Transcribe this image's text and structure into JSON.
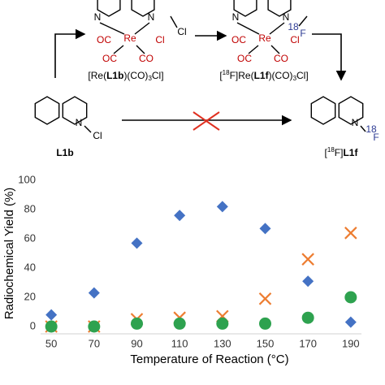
{
  "scheme": {
    "complex_1": {
      "atoms": [
        "N",
        "N",
        "Cl",
        "OC",
        "Re",
        "Cl",
        "OC",
        "CO"
      ],
      "label": [
        "[Re(",
        "L1b",
        ")(CO)",
        "3",
        "Cl]"
      ]
    },
    "complex_2": {
      "atoms": [
        "N",
        "N",
        "18",
        "F",
        "OC",
        "Re",
        "Cl",
        "OC",
        "CO"
      ],
      "label": [
        "[",
        "18",
        "F]Re(",
        "L1f",
        ")(CO)",
        "3",
        "Cl]"
      ]
    },
    "ligand": {
      "atoms": [
        "N",
        "Cl"
      ],
      "label": "L1b"
    },
    "product": {
      "atoms": [
        "N",
        "18",
        "F"
      ],
      "label": [
        "[",
        "18",
        "F]",
        "L1f"
      ]
    }
  },
  "chart_data": {
    "type": "scatter",
    "x_label": "Temperature of Reaction (°C)",
    "y_label": "Radiochemical Yield (%)",
    "xlim": [
      45,
      195
    ],
    "xticks": [
      50,
      70,
      90,
      110,
      130,
      150,
      170,
      190
    ],
    "ylim": [
      -5,
      100
    ],
    "yticks": [
      0,
      20,
      40,
      60,
      80,
      100
    ],
    "grid": false,
    "series": [
      {
        "color": "#4472c4",
        "marker": "diamond",
        "x": [
          50,
          70,
          90,
          110,
          130,
          150,
          170,
          190
        ],
        "values": [
          8,
          23,
          57,
          76,
          82,
          67,
          31,
          3
        ]
      },
      {
        "color": "#ed7d31",
        "marker": "x",
        "x": [
          50,
          70,
          90,
          110,
          130,
          150,
          170,
          190
        ],
        "values": [
          0,
          0,
          5,
          6,
          7,
          19,
          46,
          64
        ]
      },
      {
        "color": "#2ea24f",
        "marker": "circle",
        "x": [
          50,
          70,
          90,
          110,
          130,
          150,
          170,
          190
        ],
        "values": [
          0,
          0,
          2,
          2,
          2,
          2,
          6,
          20
        ]
      }
    ]
  }
}
